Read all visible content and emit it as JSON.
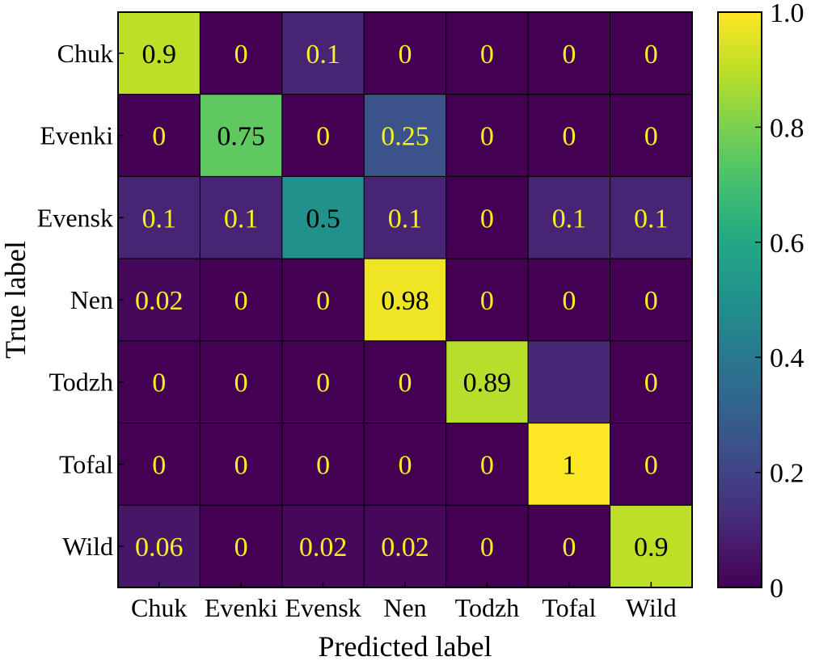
{
  "chart_data": {
    "type": "heatmap",
    "title": "",
    "xlabel": "Predicted label",
    "ylabel": "True label",
    "x_categories": [
      "Chuk",
      "Evenki",
      "Evensk",
      "Nen",
      "Todzh",
      "Tofal",
      "Wild"
    ],
    "y_categories": [
      "Chuk",
      "Evenki",
      "Evensk",
      "Nen",
      "Todzh",
      "Tofal",
      "Wild"
    ],
    "values": [
      [
        0.9,
        0,
        0.1,
        0,
        0,
        0,
        0
      ],
      [
        0,
        0.75,
        0,
        0.25,
        0,
        0,
        0
      ],
      [
        0.1,
        0.1,
        0.5,
        0.1,
        0,
        0.1,
        0.1
      ],
      [
        0.02,
        0,
        0,
        0.98,
        0,
        0,
        0
      ],
      [
        0,
        0,
        0,
        0,
        0.89,
        0.11,
        0
      ],
      [
        0,
        0,
        0,
        0,
        0,
        1,
        0
      ],
      [
        0.06,
        0,
        0.02,
        0.02,
        0,
        0,
        0.9
      ]
    ],
    "cell_labels": [
      [
        "0.9",
        "0",
        "0.1",
        "0",
        "0",
        "0",
        "0"
      ],
      [
        "0",
        "0.75",
        "0",
        "0.25",
        "0",
        "0",
        "0"
      ],
      [
        "0.1",
        "0.1",
        "0.5",
        "0.1",
        "0",
        "0.1",
        "0.1"
      ],
      [
        "0.02",
        "0",
        "0",
        "0.98",
        "0",
        "0",
        "0"
      ],
      [
        "0",
        "0",
        "0",
        "0",
        "0.89",
        "",
        "0"
      ],
      [
        "0",
        "0",
        "0",
        "0",
        "0",
        "1",
        "0"
      ],
      [
        "0.06",
        "0",
        "0.02",
        "0.02",
        "0",
        "0",
        "0.9"
      ]
    ],
    "colormap": "viridis",
    "colorbar": {
      "range": [
        0,
        1.0
      ],
      "ticks": [
        0,
        0.2,
        0.4,
        0.6,
        0.8,
        1.0
      ],
      "tick_labels": [
        "0",
        "0.2",
        "0.4",
        "0.6",
        "0.8",
        "1.0"
      ]
    },
    "colors": {
      "light_text": "#f5f21f",
      "dark_text": "#000000",
      "grid": "#000000"
    }
  }
}
